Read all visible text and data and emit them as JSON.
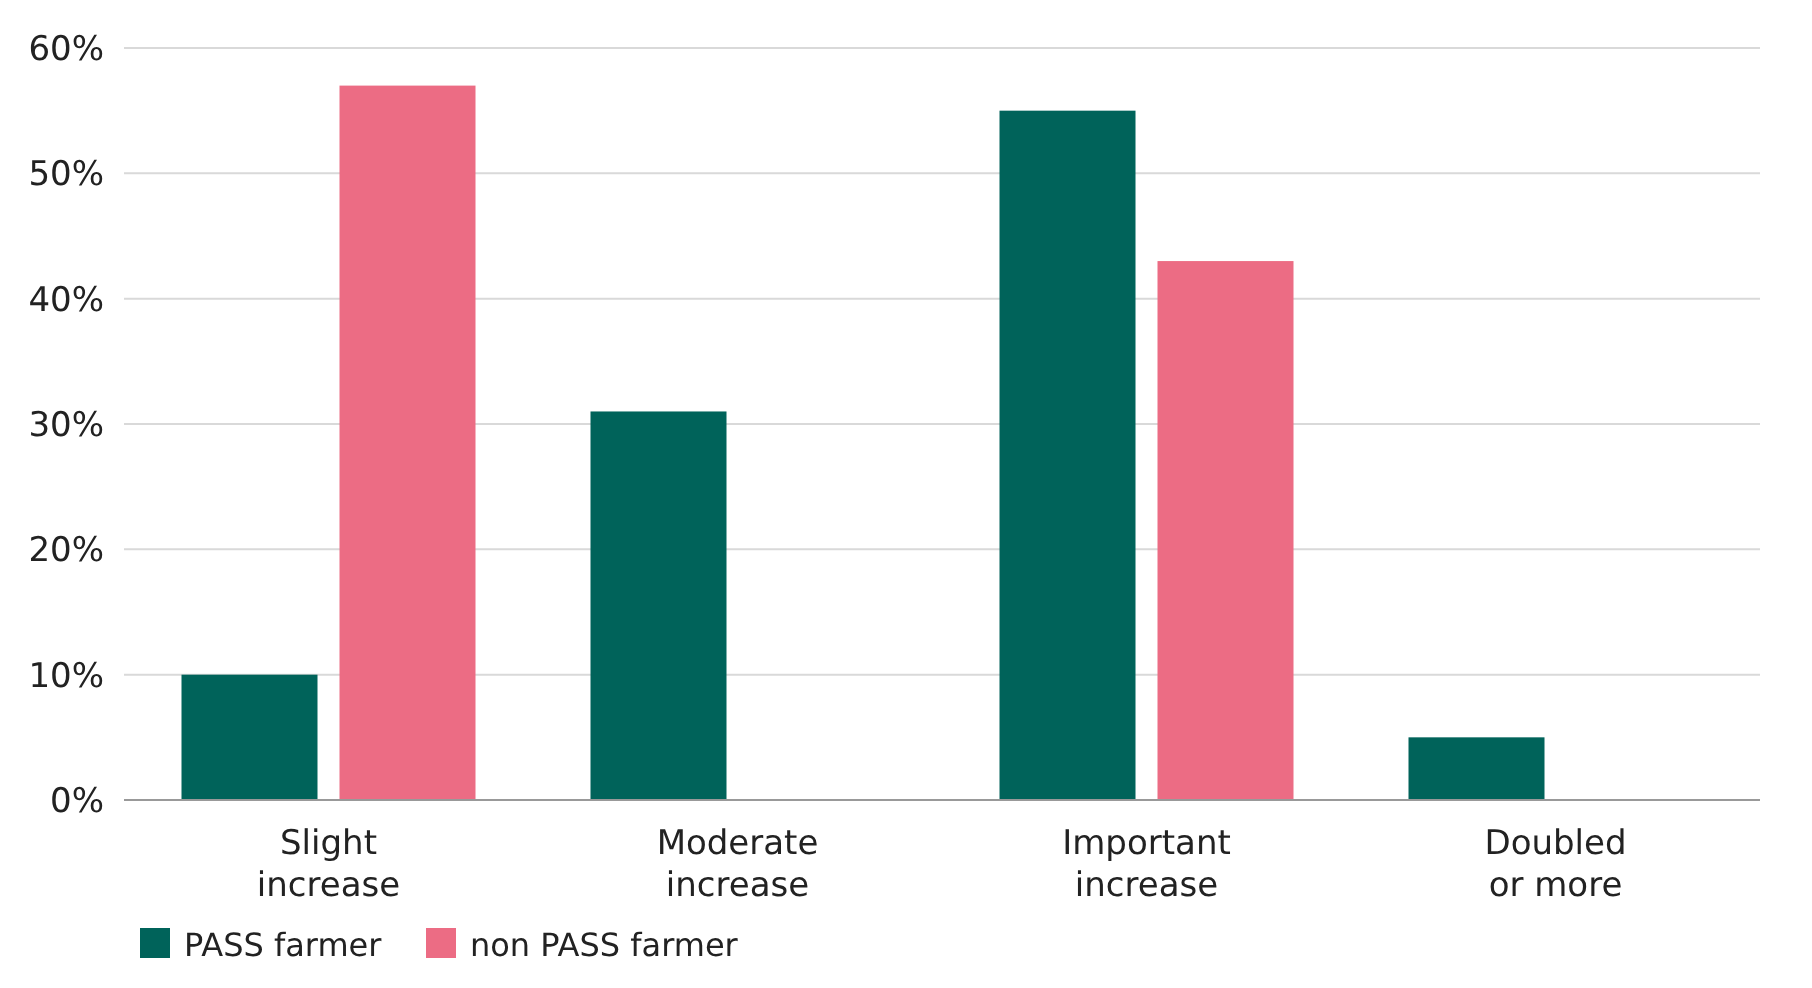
{
  "chart_data": {
    "type": "bar",
    "categories": [
      "Slight\nincrease",
      "Moderate\nincrease",
      "Important\nincrease",
      "Doubled\nor more"
    ],
    "series": [
      {
        "name": "PASS farmer",
        "color": "#00635a",
        "values": [
          10,
          31,
          55,
          5
        ]
      },
      {
        "name": "non PASS farmer",
        "color": "#ec6c84",
        "values": [
          57,
          0,
          43,
          0
        ]
      }
    ],
    "ylim": [
      0,
      60
    ],
    "yticks": [
      {
        "value": 0,
        "label": "0%"
      },
      {
        "value": 10,
        "label": "10%"
      },
      {
        "value": 20,
        "label": "20%"
      },
      {
        "value": 30,
        "label": "30%"
      },
      {
        "value": 40,
        "label": "40%"
      },
      {
        "value": 50,
        "label": "50%"
      },
      {
        "value": 60,
        "label": "60%"
      }
    ],
    "grid": "y",
    "legend": "bottom left"
  }
}
